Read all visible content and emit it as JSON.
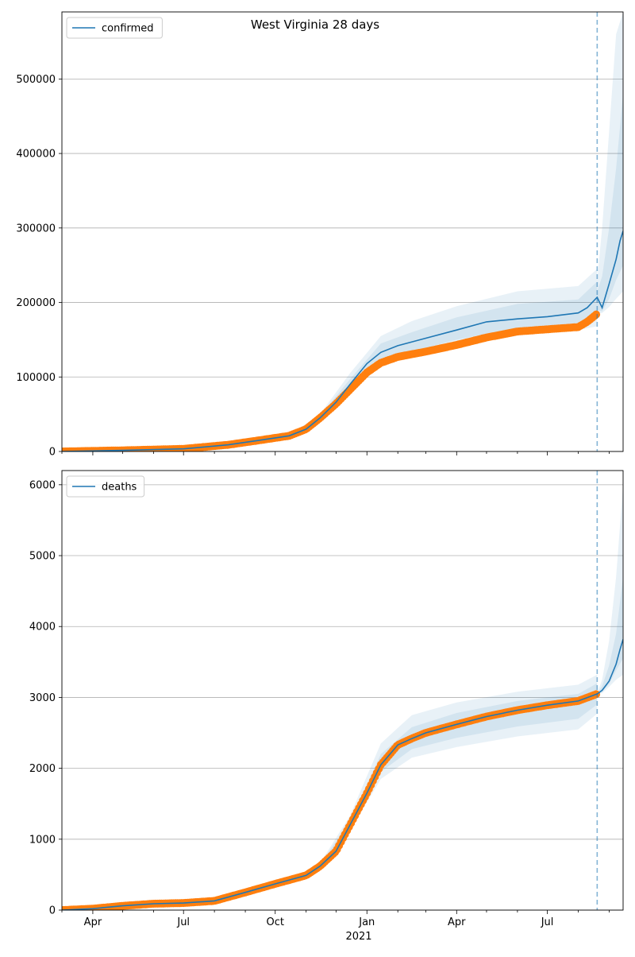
{
  "figure": {
    "title": "West Virginia 28 days",
    "x_tick_labels": [
      "Apr",
      "Jul",
      "Oct",
      "Jan",
      "Apr",
      "Jul"
    ],
    "x_year_label": "2021",
    "forecast_start": "2021-08-20"
  },
  "colors": {
    "model": "#1f77b4",
    "observed": "#ff7f0e",
    "band": "#1f77b4",
    "grid": "#b0b0b0",
    "vline": "#1f77b4"
  },
  "chart_data": [
    {
      "type": "line",
      "legend": "confirmed",
      "legend_position": "upper-left",
      "grid": "horizontal",
      "xlim": [
        "2020-03-01",
        "2021-09-15"
      ],
      "ylim": [
        0,
        590000
      ],
      "y_ticks": [
        0,
        100000,
        200000,
        300000,
        400000,
        500000
      ],
      "y_tick_labels": [
        "0",
        "100000",
        "200000",
        "300000",
        "400000",
        "500000"
      ],
      "model_series": {
        "name": "confirmed",
        "x": [
          "2020-03-01",
          "2020-05-01",
          "2020-07-01",
          "2020-08-15",
          "2020-09-15",
          "2020-10-15",
          "2020-11-01",
          "2020-11-15",
          "2020-12-01",
          "2020-12-15",
          "2021-01-01",
          "2021-01-15",
          "2021-02-01",
          "2021-03-01",
          "2021-04-01",
          "2021-05-01",
          "2021-06-01",
          "2021-07-01",
          "2021-08-01",
          "2021-08-10",
          "2021-08-20",
          "2021-08-25",
          "2021-09-01",
          "2021-09-08",
          "2021-09-12",
          "2021-09-15"
        ],
        "y": [
          0,
          1500,
          3500,
          9000,
          15000,
          21000,
          30000,
          45000,
          66000,
          90000,
          118000,
          133000,
          142000,
          152000,
          163000,
          174000,
          178000,
          181000,
          186000,
          193000,
          207000,
          193000,
          225000,
          258000,
          283000,
          296000
        ]
      },
      "observed": {
        "name": "observed",
        "x": [
          "2020-03-01",
          "2020-05-01",
          "2020-07-01",
          "2020-08-15",
          "2020-09-15",
          "2020-10-15",
          "2020-11-01",
          "2020-11-15",
          "2020-12-01",
          "2020-12-15",
          "2021-01-01",
          "2021-01-15",
          "2021-02-01",
          "2021-03-01",
          "2021-04-01",
          "2021-05-01",
          "2021-06-01",
          "2021-07-01",
          "2021-08-01",
          "2021-08-10",
          "2021-08-20"
        ],
        "y": [
          0,
          1500,
          3500,
          9000,
          15000,
          21000,
          30000,
          45000,
          64000,
          83000,
          106000,
          119000,
          127000,
          134000,
          143000,
          153000,
          161000,
          164000,
          167000,
          174000,
          185000
        ]
      },
      "bands": [
        {
          "x": [
            "2020-10-15",
            "2020-11-15",
            "2020-12-15",
            "2021-01-15",
            "2021-02-15",
            "2021-04-01",
            "2021-06-01",
            "2021-08-01",
            "2021-08-20"
          ],
          "lower": [
            20000,
            42000,
            78000,
            116000,
            128000,
            143000,
            158000,
            163000,
            168000
          ],
          "upper": [
            22000,
            50000,
            105000,
            155000,
            175000,
            195000,
            215000,
            222000,
            245000
          ]
        },
        {
          "x": [
            "2020-10-15",
            "2020-11-15",
            "2020-12-15",
            "2021-01-15",
            "2021-02-15",
            "2021-04-01",
            "2021-06-01",
            "2021-08-01",
            "2021-08-20"
          ],
          "lower": [
            20500,
            44000,
            82000,
            122000,
            134000,
            150000,
            166000,
            171000,
            180000
          ],
          "upper": [
            21500,
            48000,
            97000,
            145000,
            160000,
            180000,
            198000,
            204000,
            228000
          ]
        },
        {
          "x": [
            "2021-08-20",
            "2021-08-25",
            "2021-09-01",
            "2021-09-08",
            "2021-09-15"
          ],
          "lower": [
            185000,
            186000,
            194000,
            205000,
            215000
          ],
          "upper": [
            230000,
            300000,
            430000,
            560000,
            590000
          ]
        },
        {
          "x": [
            "2021-08-20",
            "2021-08-25",
            "2021-09-01",
            "2021-09-08",
            "2021-09-15"
          ],
          "lower": [
            190000,
            188000,
            205000,
            230000,
            250000
          ],
          "upper": [
            215000,
            235000,
            300000,
            380000,
            480000
          ]
        }
      ]
    },
    {
      "type": "line",
      "legend": "deaths",
      "legend_position": "upper-left",
      "grid": "horizontal",
      "xlim": [
        "2020-03-01",
        "2021-09-15"
      ],
      "ylim": [
        0,
        6200
      ],
      "y_ticks": [
        0,
        1000,
        2000,
        3000,
        4000,
        5000,
        6000
      ],
      "y_tick_labels": [
        "0",
        "1000",
        "2000",
        "3000",
        "4000",
        "5000",
        "6000"
      ],
      "model_series": {
        "name": "deaths",
        "x": [
          "2020-03-01",
          "2020-04-01",
          "2020-05-01",
          "2020-06-01",
          "2020-07-01",
          "2020-08-01",
          "2020-09-01",
          "2020-10-01",
          "2020-11-01",
          "2020-11-15",
          "2020-12-01",
          "2020-12-15",
          "2021-01-01",
          "2021-01-15",
          "2021-02-01",
          "2021-02-15",
          "2021-03-01",
          "2021-04-01",
          "2021-05-01",
          "2021-06-01",
          "2021-07-01",
          "2021-08-01",
          "2021-08-20",
          "2021-08-25",
          "2021-09-01",
          "2021-09-08",
          "2021-09-12",
          "2021-09-15"
        ],
        "y": [
          0,
          20,
          60,
          90,
          100,
          130,
          250,
          370,
          490,
          620,
          830,
          1200,
          1650,
          2050,
          2330,
          2420,
          2500,
          2620,
          2730,
          2820,
          2890,
          2950,
          3050,
          3100,
          3230,
          3470,
          3680,
          3820
        ]
      },
      "observed": {
        "name": "observed",
        "x": [
          "2020-03-01",
          "2020-04-01",
          "2020-05-01",
          "2020-06-01",
          "2020-07-01",
          "2020-08-01",
          "2020-09-01",
          "2020-10-01",
          "2020-11-01",
          "2020-11-15",
          "2020-12-01",
          "2020-12-15",
          "2021-01-01",
          "2021-01-15",
          "2021-02-01",
          "2021-02-15",
          "2021-03-01",
          "2021-04-01",
          "2021-05-01",
          "2021-06-01",
          "2021-07-01",
          "2021-08-01",
          "2021-08-20"
        ],
        "y": [
          0,
          20,
          60,
          90,
          100,
          130,
          250,
          370,
          490,
          620,
          830,
          1200,
          1650,
          2050,
          2330,
          2420,
          2500,
          2620,
          2730,
          2820,
          2890,
          2950,
          3050
        ]
      },
      "bands": [
        {
          "x": [
            "2020-11-15",
            "2020-12-15",
            "2021-01-15",
            "2021-02-15",
            "2021-04-01",
            "2021-06-01",
            "2021-08-01",
            "2021-08-20"
          ],
          "lower": [
            600,
            1120,
            1850,
            2150,
            2300,
            2450,
            2550,
            2770
          ],
          "upper": [
            660,
            1330,
            2350,
            2750,
            2930,
            3080,
            3180,
            3320
          ]
        },
        {
          "x": [
            "2020-11-15",
            "2020-12-15",
            "2021-01-15",
            "2021-02-15",
            "2021-04-01",
            "2021-06-01",
            "2021-08-01",
            "2021-08-20"
          ],
          "lower": [
            610,
            1160,
            1950,
            2270,
            2430,
            2590,
            2700,
            2900
          ],
          "upper": [
            640,
            1260,
            2200,
            2580,
            2780,
            2950,
            3050,
            3200
          ]
        },
        {
          "x": [
            "2021-08-20",
            "2021-08-25",
            "2021-09-01",
            "2021-09-08",
            "2021-09-15"
          ],
          "lower": [
            3050,
            3060,
            3150,
            3250,
            3320
          ],
          "upper": [
            3060,
            3250,
            3800,
            4700,
            6000
          ]
        },
        {
          "x": [
            "2021-08-20",
            "2021-08-25",
            "2021-09-01",
            "2021-09-08",
            "2021-09-15"
          ],
          "lower": [
            3050,
            3080,
            3190,
            3380,
            3550
          ],
          "upper": [
            3055,
            3160,
            3450,
            3900,
            4700
          ]
        }
      ]
    }
  ]
}
